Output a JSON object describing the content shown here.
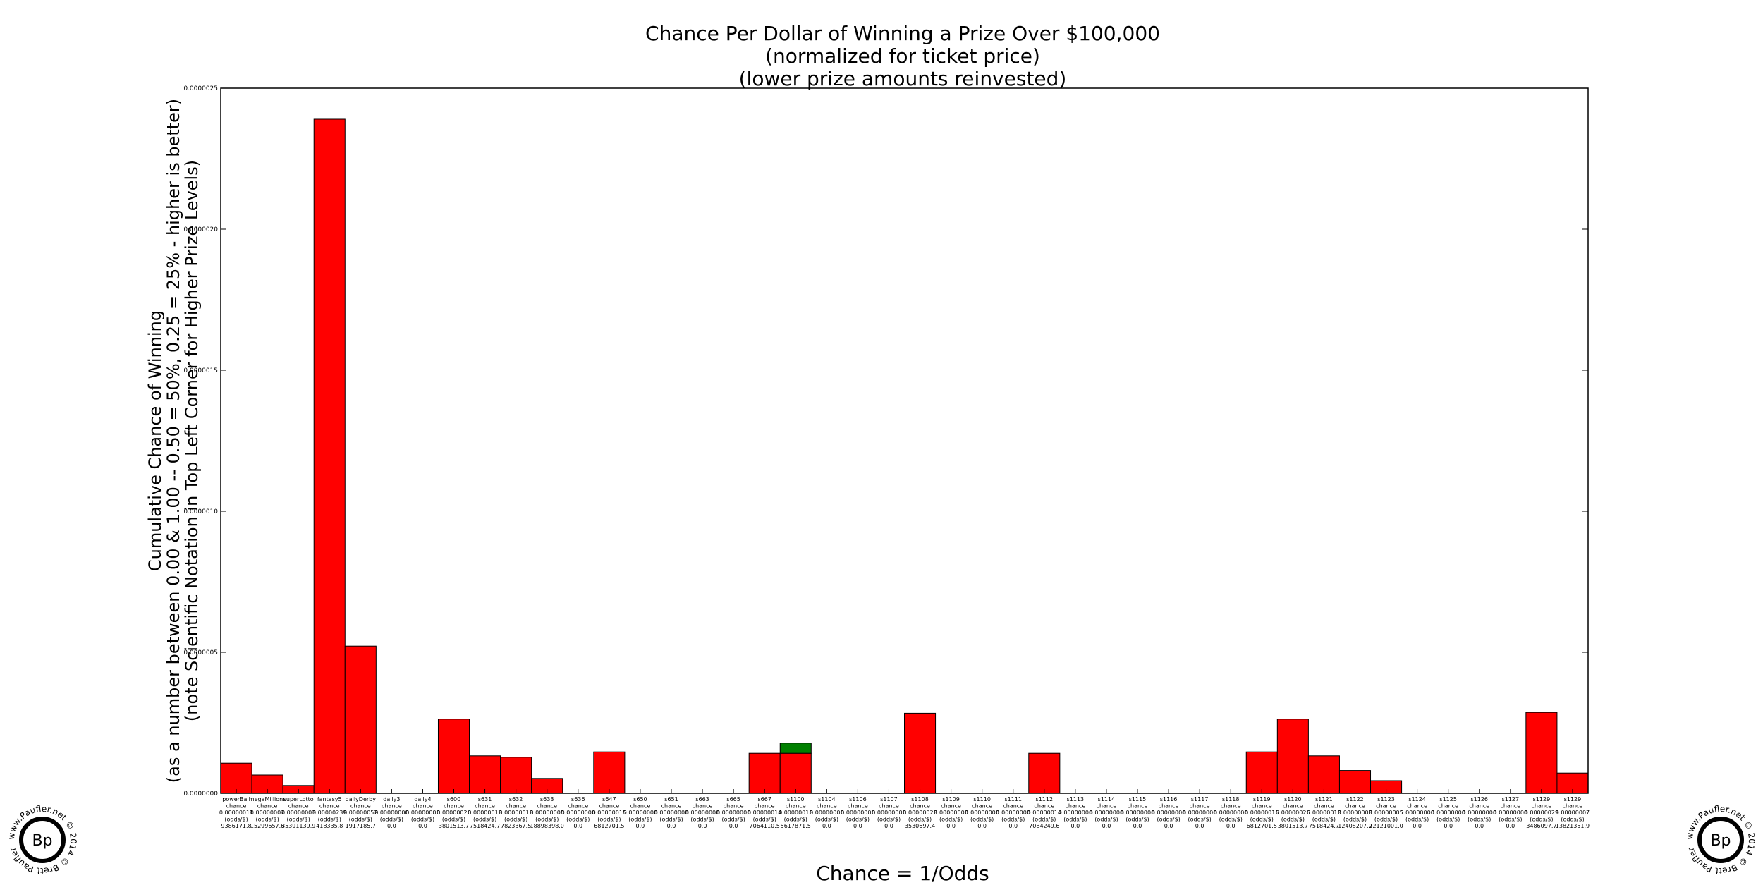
{
  "chart_data": {
    "type": "bar",
    "title_lines": [
      "Chance Per Dollar of Winning a Prize Over $100,000",
      "(normalized for ticket price)",
      "(lower prize amounts reinvested)"
    ],
    "xlabel": "Chance = 1/Odds",
    "ylabel_lines": [
      "Cumulative Chance of Winning",
      "(as a number between 0.00 & 1.00 -- 0.50 = 50%, 0.25 = 25% - higher is better)",
      "(note Scientific Notation in Top Left Corner for Higher Prize Levels)"
    ],
    "ylim": [
      0,
      2.5e-06
    ],
    "yticks": [
      "0.0000000",
      "0.0000005",
      "0.0000010",
      "0.0000015",
      "0.0000020",
      "0.0000025"
    ],
    "grid": false,
    "colors": {
      "bar": "#ff0000",
      "highlight": "#008000",
      "edge": "#000000"
    },
    "categories": [
      {
        "name": "powerBall",
        "chance": "0.00000011",
        "odds": "9386171.8",
        "value": 1.07e-07
      },
      {
        "name": "megaMillions",
        "chance": "0.00000007",
        "odds": "15299657.6",
        "value": 6.5e-08
      },
      {
        "name": "superLotto",
        "chance": "0.00000003",
        "odds": "35391139.9",
        "value": 2.8e-08
      },
      {
        "name": "fantasy5",
        "chance": "0.00000239",
        "odds": "418335.8",
        "value": 2.39e-06
      },
      {
        "name": "dailyDerby",
        "chance": "0.00000052",
        "odds": "1917185.7",
        "value": 5.22e-07
      },
      {
        "name": "daily3",
        "chance": "0.00000000",
        "odds": "0.0",
        "value": 0
      },
      {
        "name": "daily4",
        "chance": "0.00000000",
        "odds": "0.0",
        "value": 0
      },
      {
        "name": "s600",
        "chance": "0.00000026",
        "odds": "3801513.7",
        "value": 2.63e-07
      },
      {
        "name": "s631",
        "chance": "0.00000013",
        "odds": "7518424.7",
        "value": 1.33e-07
      },
      {
        "name": "s632",
        "chance": "0.00000013",
        "odds": "7823367.5",
        "value": 1.28e-07
      },
      {
        "name": "s633",
        "chance": "0.00000005",
        "odds": "18898398.0",
        "value": 5.3e-08
      },
      {
        "name": "s636",
        "chance": "0.00000000",
        "odds": "0.0",
        "value": 0
      },
      {
        "name": "s647",
        "chance": "0.00000015",
        "odds": "6812701.5",
        "value": 1.47e-07
      },
      {
        "name": "s650",
        "chance": "0.00000000",
        "odds": "0.0",
        "value": 0
      },
      {
        "name": "s651",
        "chance": "0.00000000",
        "odds": "0.0",
        "value": 0
      },
      {
        "name": "s663",
        "chance": "0.00000000",
        "odds": "0.0",
        "value": 0
      },
      {
        "name": "s665",
        "chance": "0.00000000",
        "odds": "0.0",
        "value": 0
      },
      {
        "name": "s667",
        "chance": "0.00000014",
        "odds": "7064110.5",
        "value": 1.42e-07
      },
      {
        "name": "s1100",
        "chance": "0.00000018",
        "odds": "5617871.5",
        "value": 1.42e-07,
        "highlight": 3.6e-08
      },
      {
        "name": "s1104",
        "chance": "0.00000000",
        "odds": "0.0",
        "value": 0
      },
      {
        "name": "s1106",
        "chance": "0.00000000",
        "odds": "0.0",
        "value": 0
      },
      {
        "name": "s1107",
        "chance": "0.00000000",
        "odds": "0.0",
        "value": 0
      },
      {
        "name": "s1108",
        "chance": "0.00000028",
        "odds": "3530697.4",
        "value": 2.84e-07
      },
      {
        "name": "s1109",
        "chance": "0.00000000",
        "odds": "0.0",
        "value": 0
      },
      {
        "name": "s1110",
        "chance": "0.00000000",
        "odds": "0.0",
        "value": 0
      },
      {
        "name": "s1111",
        "chance": "0.00000000",
        "odds": "0.0",
        "value": 0
      },
      {
        "name": "s1112",
        "chance": "0.00000014",
        "odds": "7084249.6",
        "value": 1.42e-07
      },
      {
        "name": "s1113",
        "chance": "0.00000000",
        "odds": "0.0",
        "value": 0
      },
      {
        "name": "s1114",
        "chance": "0.00000000",
        "odds": "0.0",
        "value": 0
      },
      {
        "name": "s1115",
        "chance": "0.00000000",
        "odds": "0.0",
        "value": 0
      },
      {
        "name": "s1116",
        "chance": "0.00000000",
        "odds": "0.0",
        "value": 0
      },
      {
        "name": "s1117",
        "chance": "0.00000000",
        "odds": "0.0",
        "value": 0
      },
      {
        "name": "s1118",
        "chance": "0.00000000",
        "odds": "0.0",
        "value": 0
      },
      {
        "name": "s1119",
        "chance": "0.00000015",
        "odds": "6812701.5",
        "value": 1.47e-07
      },
      {
        "name": "s1120",
        "chance": "0.00000026",
        "odds": "3801513.7",
        "value": 2.63e-07
      },
      {
        "name": "s1121",
        "chance": "0.00000013",
        "odds": "7518424.7",
        "value": 1.33e-07
      },
      {
        "name": "s1122",
        "chance": "0.00000008",
        "odds": "12408207.9",
        "value": 8.1e-08
      },
      {
        "name": "s1123",
        "chance": "0.00000005",
        "odds": "22121001.0",
        "value": 4.5e-08
      },
      {
        "name": "s1124",
        "chance": "0.00000000",
        "odds": "0.0",
        "value": 0
      },
      {
        "name": "s1125",
        "chance": "0.00000000",
        "odds": "0.0",
        "value": 0
      },
      {
        "name": "s1126",
        "chance": "0.00000000",
        "odds": "0.0",
        "value": 0
      },
      {
        "name": "s1127",
        "chance": "0.00000000",
        "odds": "0.0",
        "value": 0
      },
      {
        "name": "s1129",
        "chance": "0.00000029",
        "odds": "3486097.7",
        "value": 2.87e-07
      },
      {
        "name": "s1129",
        "chance": "0.00000007",
        "odds": "13821351.9",
        "value": 7.2e-08
      }
    ]
  },
  "watermark": {
    "text": "www.Paufler.net © 2014 © Brett Paufler",
    "logo": "Bp"
  }
}
